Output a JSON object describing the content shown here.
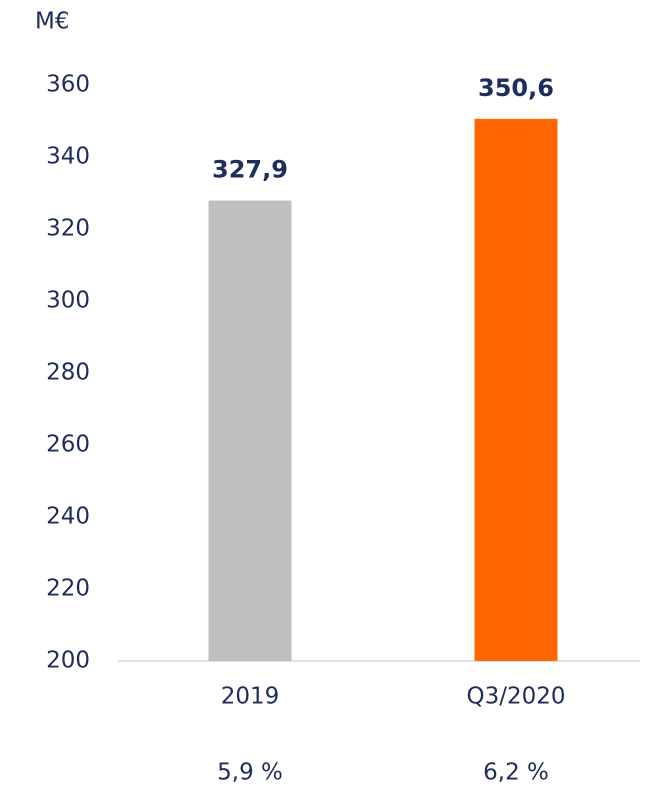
{
  "chart_data": {
    "type": "bar",
    "ylabel": "M€",
    "categories": [
      "2019",
      "Q3/2020"
    ],
    "values": [
      327.9,
      350.6
    ],
    "value_labels": [
      "327,9",
      "350,6"
    ],
    "colors": [
      "#bfbfbf",
      "#ff6600"
    ],
    "annotations": [
      "5,9 %",
      "6,2 %"
    ],
    "ylim": [
      200,
      360
    ],
    "yticks": [
      200,
      220,
      240,
      260,
      280,
      300,
      320,
      340,
      360
    ],
    "grid": false
  }
}
